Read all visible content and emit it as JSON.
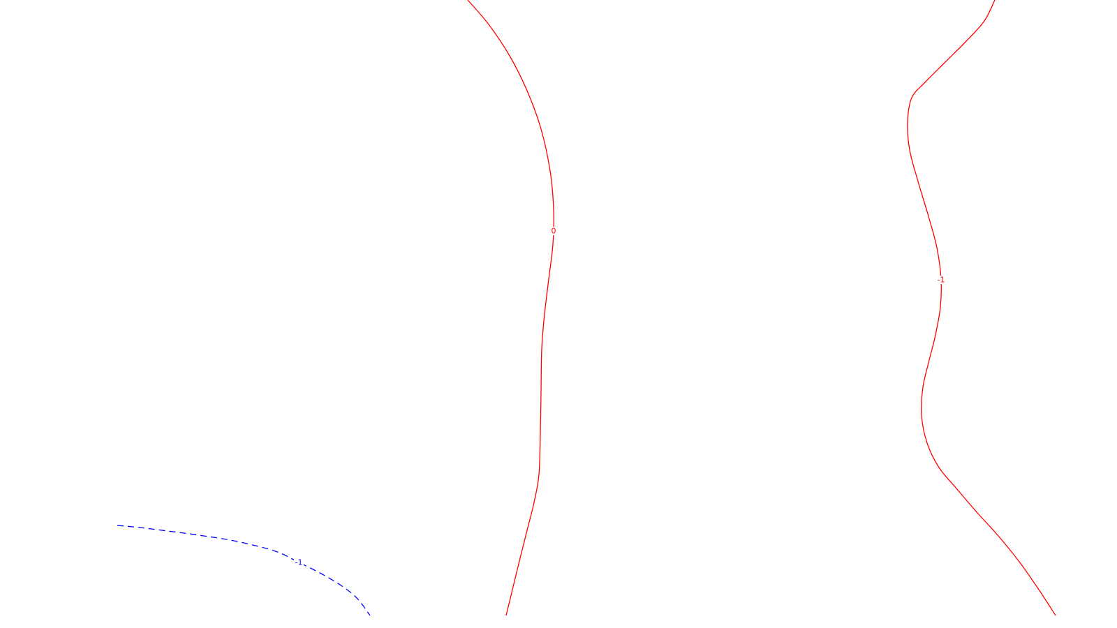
{
  "chart_data": {
    "type": "contour",
    "title": "",
    "xlabel": "",
    "ylabel": "",
    "grid": false,
    "legend": "none",
    "axes_visible": false,
    "contours": [
      {
        "level": "0",
        "label": "0",
        "color": "#ff0000",
        "style": "solid",
        "points": [
          [
            670,
            0
          ],
          [
            700,
            35
          ],
          [
            730,
            80
          ],
          [
            755,
            130
          ],
          [
            775,
            185
          ],
          [
            788,
            245
          ],
          [
            793,
            300
          ],
          [
            792,
            350
          ],
          [
            786,
            400
          ],
          [
            780,
            450
          ],
          [
            776,
            500
          ],
          [
            775,
            560
          ],
          [
            774,
            620
          ],
          [
            772,
            680
          ],
          [
            765,
            720
          ],
          [
            755,
            760
          ],
          [
            745,
            800
          ],
          [
            734,
            845
          ],
          [
            725,
            882
          ]
        ],
        "label_at": [
          793,
          331
        ]
      },
      {
        "level": "-1",
        "label": "-1",
        "color": "#ff0000",
        "style": "solid",
        "points": [
          [
            1425,
            0
          ],
          [
            1410,
            30
          ],
          [
            1385,
            58
          ],
          [
            1355,
            88
          ],
          [
            1325,
            118
          ],
          [
            1306,
            140
          ],
          [
            1300,
            175
          ],
          [
            1303,
            215
          ],
          [
            1315,
            260
          ],
          [
            1330,
            310
          ],
          [
            1342,
            355
          ],
          [
            1348,
            400
          ],
          [
            1347,
            440
          ],
          [
            1340,
            480
          ],
          [
            1330,
            520
          ],
          [
            1322,
            555
          ],
          [
            1320,
            595
          ],
          [
            1328,
            635
          ],
          [
            1345,
            670
          ],
          [
            1370,
            700
          ],
          [
            1400,
            735
          ],
          [
            1430,
            768
          ],
          [
            1460,
            805
          ],
          [
            1488,
            845
          ],
          [
            1512,
            882
          ]
        ],
        "label_at": [
          1348,
          401
        ]
      },
      {
        "level": "-1",
        "label": "-1",
        "color": "#0000ff",
        "style": "dashed",
        "points": [
          [
            168,
            753
          ],
          [
            200,
            756
          ],
          [
            240,
            761
          ],
          [
            285,
            767
          ],
          [
            330,
            774
          ],
          [
            370,
            783
          ],
          [
            400,
            792
          ],
          [
            428,
            806
          ],
          [
            460,
            822
          ],
          [
            490,
            840
          ],
          [
            512,
            858
          ],
          [
            530,
            882
          ]
        ],
        "label_at": [
          428,
          806
        ]
      }
    ]
  }
}
